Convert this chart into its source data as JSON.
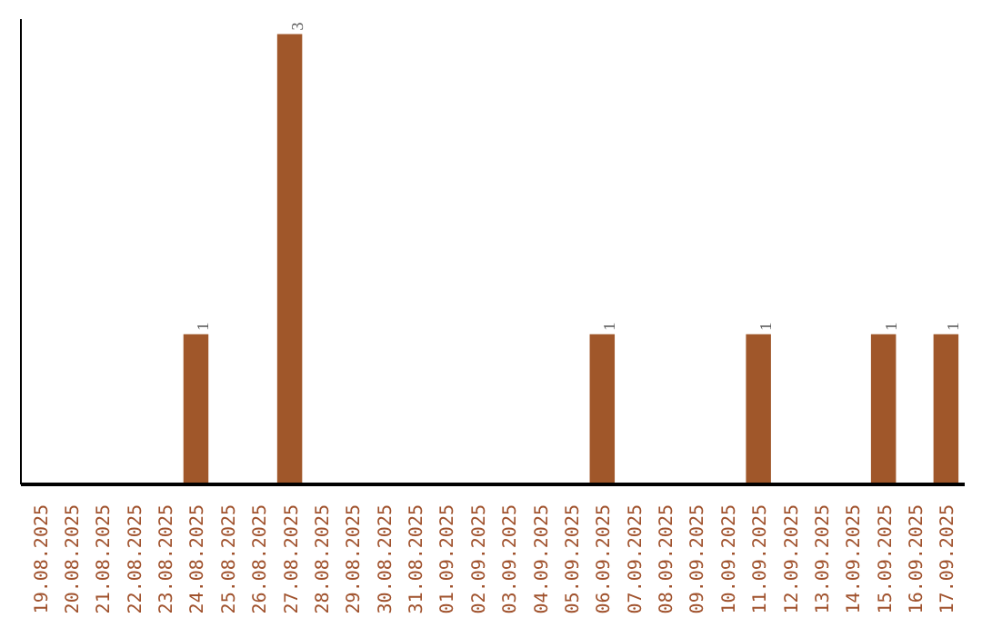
{
  "chart_data": {
    "type": "bar",
    "categories": [
      "19.08.2025",
      "20.08.2025",
      "21.08.2025",
      "22.08.2025",
      "23.08.2025",
      "24.08.2025",
      "25.08.2025",
      "26.08.2025",
      "27.08.2025",
      "28.08.2025",
      "29.08.2025",
      "30.08.2025",
      "31.08.2025",
      "01.09.2025",
      "02.09.2025",
      "03.09.2025",
      "04.09.2025",
      "05.09.2025",
      "06.09.2025",
      "07.09.2025",
      "08.09.2025",
      "09.09.2025",
      "10.09.2025",
      "11.09.2025",
      "12.09.2025",
      "13.09.2025",
      "14.09.2025",
      "15.09.2025",
      "16.09.2025",
      "17.09.2025"
    ],
    "values": [
      0,
      0,
      0,
      0,
      0,
      1,
      0,
      0,
      3,
      0,
      0,
      0,
      0,
      0,
      0,
      0,
      0,
      0,
      1,
      0,
      0,
      0,
      0,
      1,
      0,
      0,
      0,
      1,
      0,
      1
    ],
    "value_labels": [
      null,
      null,
      null,
      null,
      null,
      "1",
      null,
      null,
      "3",
      null,
      null,
      null,
      null,
      null,
      null,
      null,
      null,
      null,
      "1",
      null,
      null,
      null,
      null,
      "1",
      null,
      null,
      null,
      "1",
      null,
      "1"
    ],
    "color": "#a0572a",
    "ylim": [
      0,
      3.1
    ],
    "grid": false,
    "tick_labels": "x"
  }
}
